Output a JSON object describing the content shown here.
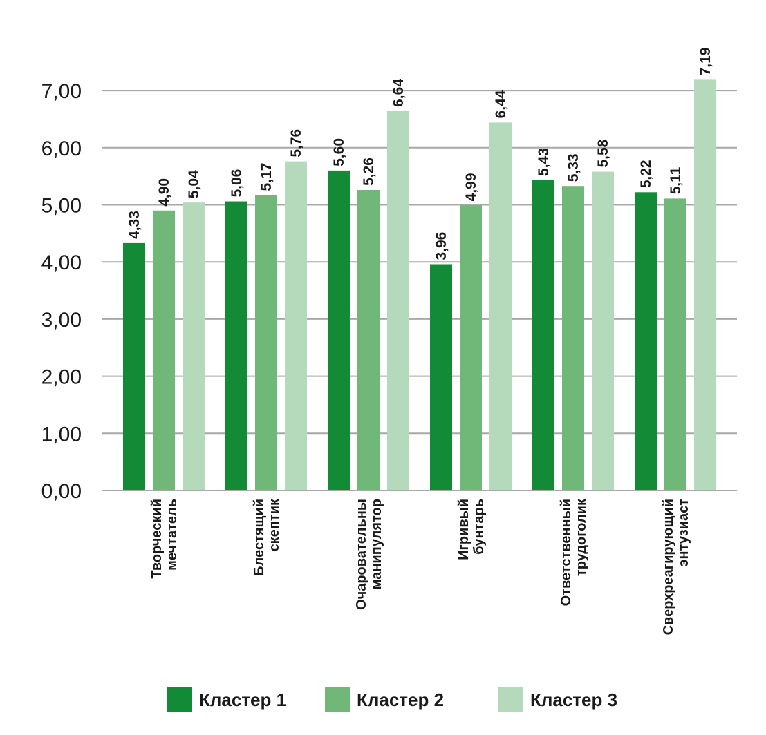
{
  "chart_data": {
    "type": "bar",
    "categories": [
      [
        "Творческий",
        "мечтатель"
      ],
      [
        "Блестящий",
        "скептик"
      ],
      [
        "Очаровательны",
        "манипулятор"
      ],
      [
        "Игривый",
        "бунтарь"
      ],
      [
        "Ответственный",
        "трудоголик"
      ],
      [
        "Сверхреагирующий",
        "энтузиаст"
      ]
    ],
    "series": [
      {
        "name": "Кластер 1",
        "color": "#138a35",
        "values": [
          4.33,
          5.06,
          5.6,
          3.96,
          5.43,
          5.22
        ],
        "labels": [
          "4,33",
          "5,06",
          "5,60",
          "3,96",
          "5,43",
          "5,22"
        ]
      },
      {
        "name": "Кластер 2",
        "color": "#70b877",
        "values": [
          4.9,
          5.17,
          5.26,
          4.99,
          5.33,
          5.11
        ],
        "labels": [
          "4,90",
          "5,17",
          "5,26",
          "4,99",
          "5,33",
          "5,11"
        ]
      },
      {
        "name": "Кластер 3",
        "color": "#b5dabb",
        "values": [
          5.04,
          5.76,
          6.64,
          6.44,
          5.58,
          7.19
        ],
        "labels": [
          "5,04",
          "5,76",
          "6,64",
          "6,44",
          "5,58",
          "7,19"
        ]
      }
    ],
    "yticks": [
      0,
      1,
      2,
      3,
      4,
      5,
      6,
      7
    ],
    "ytick_labels": [
      "0,00",
      "1,00",
      "2,00",
      "3,00",
      "4,00",
      "5,00",
      "6,00",
      "7,00"
    ],
    "ylim": [
      0,
      7.3
    ],
    "grid": true,
    "legend_position": "bottom"
  }
}
